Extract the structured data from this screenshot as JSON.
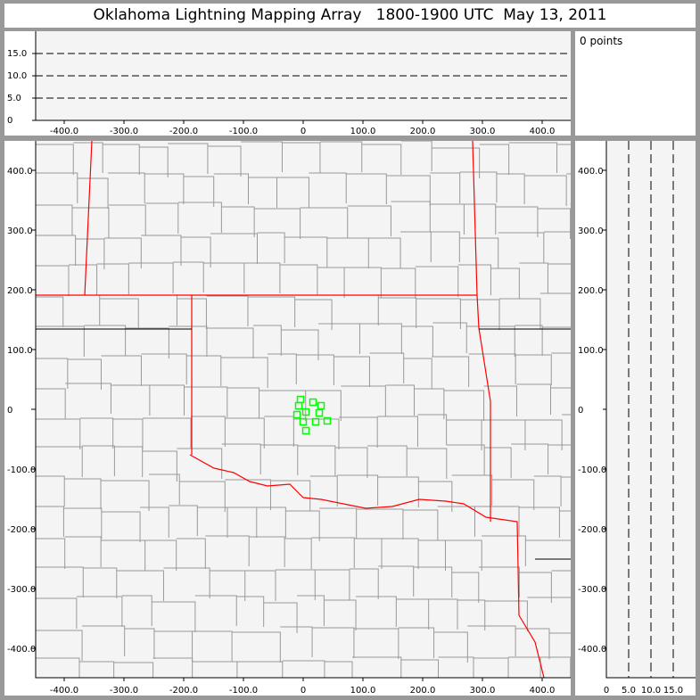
{
  "title": "Oklahoma Lightning Mapping Array   1800-1900 UTC  May 13, 2011",
  "info": {
    "points_label": "0 points"
  },
  "colors": {
    "point": "#00ff00",
    "state_border": "#ff0000",
    "county_line": "#999999",
    "plot_bg": "#f4f4f4"
  },
  "altitude_panel": {
    "y_ticks": [
      "0",
      "5.0",
      "10.0",
      "15.0"
    ],
    "x_ticks": [
      "-400.0",
      "-300.0",
      "-200.0",
      "-100.0",
      "0",
      "100.0",
      "200.0",
      "300.0",
      "400.0"
    ],
    "dashed_levels_km": [
      5,
      10,
      15
    ]
  },
  "plan_view": {
    "x_ticks": [
      "-400.0",
      "-300.0",
      "-200.0",
      "-100.0",
      "0",
      "100.0",
      "200.0",
      "300.0",
      "400.0"
    ],
    "y_ticks": [
      "400.0",
      "300.0",
      "200.0",
      "100.0",
      "0",
      "-100.0",
      "-200.0",
      "-300.0",
      "-400.0"
    ],
    "x_range_km": [
      -450,
      450
    ],
    "y_range_km": [
      -450,
      450
    ]
  },
  "side_panel": {
    "x_ticks": [
      "0",
      "5.0",
      "10.0",
      "15.0"
    ],
    "dashed_levels_km": [
      5,
      10,
      15
    ]
  },
  "points_km": [
    [
      -4.5,
      16.4
    ],
    [
      16.4,
      11.9
    ],
    [
      29.9,
      6.0
    ],
    [
      -7.5,
      6.0
    ],
    [
      4.5,
      -4.5
    ],
    [
      -10.4,
      -9.0
    ],
    [
      26.9,
      -6.0
    ],
    [
      0,
      -20.9
    ],
    [
      20.9,
      -20.9
    ],
    [
      40.3,
      -19.4
    ],
    [
      4.5,
      -35.8
    ]
  ]
}
